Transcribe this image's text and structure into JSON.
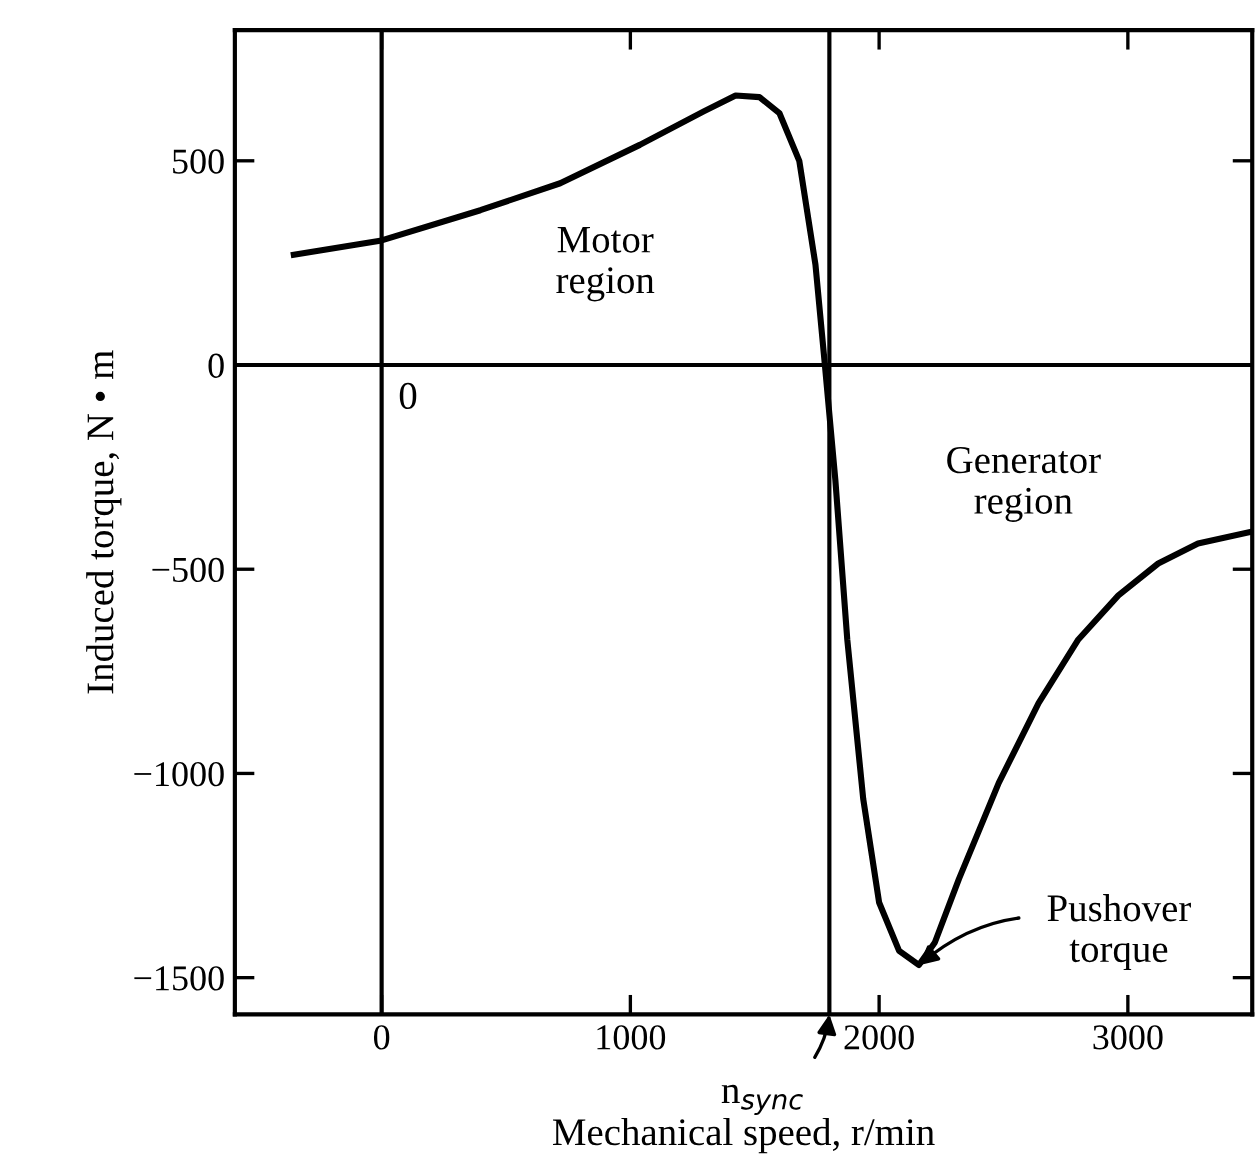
{
  "chart_data": {
    "type": "line",
    "xlabel": "Mechanical speed, r/min",
    "ylabel": "Induced torque, N • m",
    "xlim": [
      -590,
      3500
    ],
    "ylim": [
      -1590,
      820
    ],
    "xticks": [
      0,
      1000,
      2000,
      3000
    ],
    "yticks": [
      -1500,
      -1000,
      -500,
      0,
      500
    ],
    "grid": false,
    "marker": "none",
    "line_style": "solid",
    "series": [
      {
        "color": "#000000",
        "x": [
          -353,
          0,
          397,
          718,
          1038,
          1295,
          1423,
          1519,
          1599,
          1679,
          1744,
          1782,
          1824,
          1872,
          1936,
          2000,
          2080,
          2160,
          2224,
          2321,
          2481,
          2641,
          2801,
          2962,
          3122,
          3282,
          3500
        ],
        "values": [
          270,
          305,
          379,
          445,
          539,
          621,
          660,
          656,
          617,
          500,
          246,
          0,
          -281,
          -672,
          -1062,
          -1316,
          -1434,
          -1469,
          -1414,
          -1258,
          -1023,
          -828,
          -672,
          -564,
          -486,
          -437,
          -408
        ]
      }
    ],
    "ref_lines": [
      {
        "axis": "x",
        "value": 0,
        "color": "#000000"
      },
      {
        "axis": "x",
        "value": 1800,
        "color": "#000000"
      },
      {
        "axis": "y",
        "value": 0,
        "color": "#000000"
      }
    ],
    "annotations": [
      "Motor\nregion",
      "Generator\nregion",
      {
        "text": "0",
        "x": 0,
        "y": 0
      },
      {
        "text": "Pushover\ntorque",
        "x": 2160,
        "y": -1470
      },
      {
        "text": "n$_{sync}$",
        "x": 1800,
        "y": -1590
      }
    ]
  }
}
